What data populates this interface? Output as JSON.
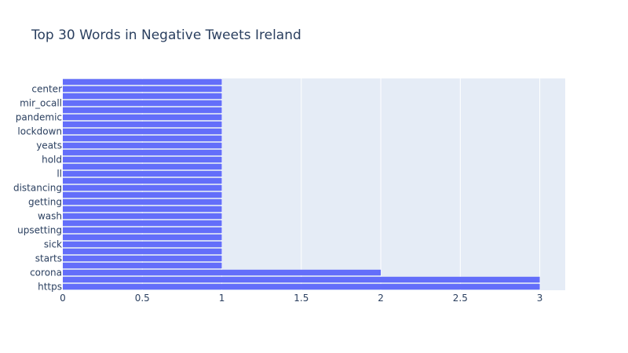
{
  "chart_data": {
    "type": "bar",
    "orientation": "horizontal",
    "title": "Top 30 Words in Negative Tweets Ireland",
    "xlabel": "",
    "ylabel": "",
    "xlim": [
      0,
      3.16
    ],
    "x_ticks": [
      "0",
      "0.5",
      "1",
      "1.5",
      "2",
      "2.5",
      "3"
    ],
    "x_tick_values": [
      0,
      0.5,
      1,
      1.5,
      2,
      2.5,
      3
    ],
    "grid": true,
    "bar_color": "#636efa",
    "plot_background": "#e5ecf6",
    "categories_bottom_to_top": [
      "https",
      "",
      "corona",
      "",
      "starts",
      "",
      "sick",
      "",
      "upsetting",
      "",
      "wash",
      "",
      "getting",
      "",
      "distancing",
      "",
      "ll",
      "",
      "hold",
      "",
      "yeats",
      "",
      "lockdown",
      "",
      "pandemic",
      "",
      "mir_ocall",
      "",
      "center",
      ""
    ],
    "values_bottom_to_top": [
      3,
      3,
      2,
      1,
      1,
      1,
      1,
      1,
      1,
      1,
      1,
      1,
      1,
      1,
      1,
      1,
      1,
      1,
      1,
      1,
      1,
      1,
      1,
      1,
      1,
      1,
      1,
      1,
      1,
      1
    ]
  }
}
